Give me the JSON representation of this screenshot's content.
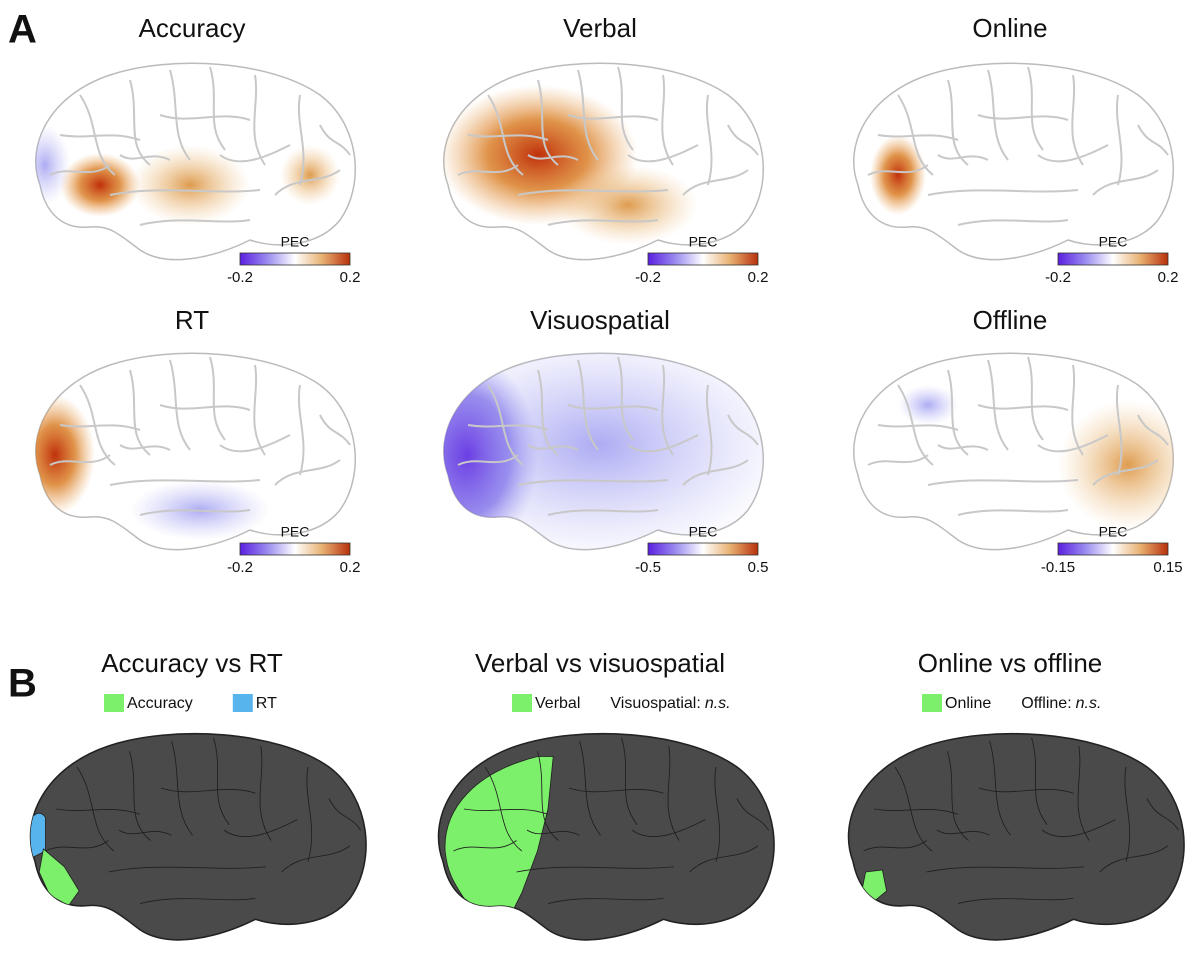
{
  "panel_a": {
    "label": "A",
    "maps": [
      {
        "title": "Accuracy",
        "colorbar": {
          "label": "PEC",
          "min": "-0.2",
          "max": "0.2"
        }
      },
      {
        "title": "Verbal",
        "colorbar": {
          "label": "PEC",
          "min": "-0.2",
          "max": "0.2"
        }
      },
      {
        "title": "Online",
        "colorbar": {
          "label": "PEC",
          "min": "-0.2",
          "max": "0.2"
        }
      },
      {
        "title": "RT",
        "colorbar": {
          "label": "PEC",
          "min": "-0.2",
          "max": "0.2"
        }
      },
      {
        "title": "Visuospatial",
        "colorbar": {
          "label": "PEC",
          "min": "-0.5",
          "max": "0.5"
        }
      },
      {
        "title": "Offline",
        "colorbar": {
          "label": "PEC",
          "min": "-0.15",
          "max": "0.15"
        }
      }
    ]
  },
  "panel_b": {
    "label": "B",
    "comparisons": [
      {
        "title": "Accuracy vs RT",
        "legend": [
          {
            "name": "Accuracy",
            "color": "#7cf06a"
          },
          {
            "name": "RT",
            "color": "#58b4ec"
          }
        ]
      },
      {
        "title": "Verbal vs visuospatial",
        "legend": [
          {
            "name": "Verbal",
            "color": "#7cf06a"
          }
        ],
        "note": {
          "text": "Visuospatial:",
          "italic": "n.s."
        }
      },
      {
        "title": "Online vs offline",
        "legend": [
          {
            "name": "Online",
            "color": "#7cf06a"
          }
        ],
        "note": {
          "text": "Offline:",
          "italic": "n.s."
        }
      }
    ]
  }
}
